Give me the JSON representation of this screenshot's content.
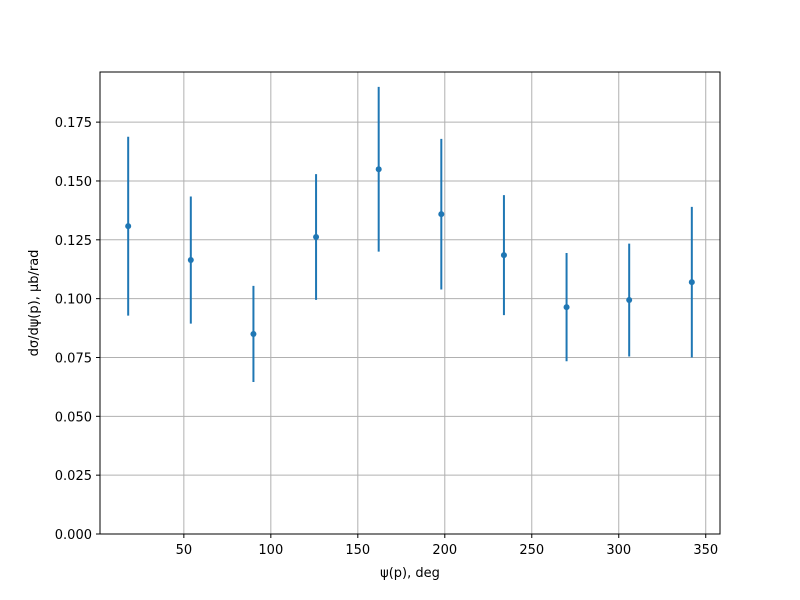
{
  "chart_data": {
    "type": "errorbar",
    "x_label": "ψ(p), deg",
    "y_label": "dσ/dψ(p), μb/rad",
    "x": [
      18,
      54,
      90,
      126,
      162,
      198,
      234,
      270,
      306,
      342
    ],
    "values": [
      0.1308,
      0.1164,
      0.085,
      0.1262,
      0.155,
      0.1359,
      0.1185,
      0.0964,
      0.0994,
      0.107
    ],
    "errors": [
      0.038,
      0.027,
      0.0204,
      0.0267,
      0.035,
      0.032,
      0.0255,
      0.023,
      0.024,
      0.032
    ],
    "color": "#1f77b4",
    "xlim": [
      1.8,
      358.2
    ],
    "ylim": [
      0,
      0.1963
    ],
    "xticks": [
      50,
      100,
      150,
      200,
      250,
      300,
      350
    ],
    "yticks": [
      {
        "value": 0,
        "label": "0.000"
      },
      {
        "value": 0.025,
        "label": "0.025"
      },
      {
        "value": 0.05,
        "label": "0.050"
      },
      {
        "value": 0.075,
        "label": "0.075"
      },
      {
        "value": 0.1,
        "label": "0.100"
      },
      {
        "value": 0.125,
        "label": "0.125"
      },
      {
        "value": 0.15,
        "label": "0.150"
      },
      {
        "value": 0.175,
        "label": "0.175"
      }
    ],
    "grid": true
  }
}
